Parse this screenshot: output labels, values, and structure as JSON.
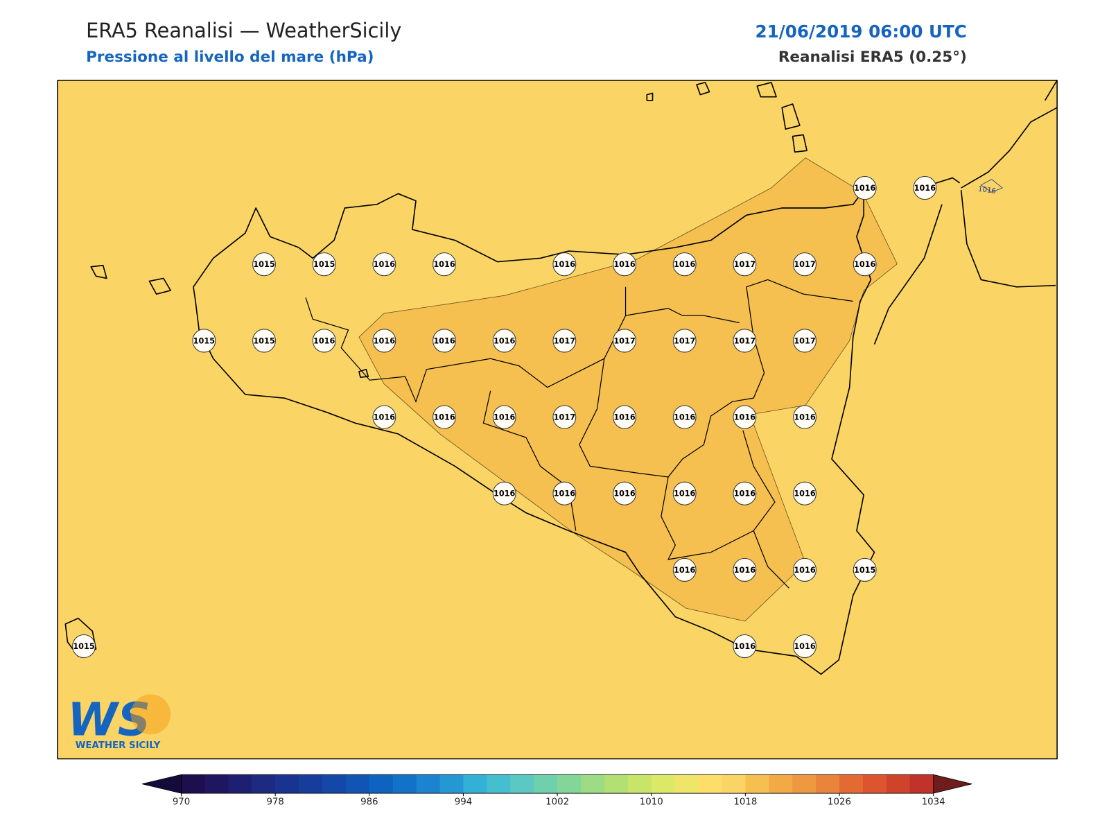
{
  "header": {
    "title": "ERA5 Reanalisi — WeatherSicily",
    "subtitle": "Pressione al livello del mare (hPa)",
    "datetime": "21/06/2019 06:00 UTC",
    "source": "Reanalisi ERA5 (0.25°)"
  },
  "map": {
    "stations": [
      {
        "value": 1016
      },
      {
        "value": 1016
      },
      {
        "value": 1015
      },
      {
        "value": 1015
      },
      {
        "value": 1016
      },
      {
        "value": 1016
      },
      {
        "value": 1016
      },
      {
        "value": 1016
      },
      {
        "value": 1016
      },
      {
        "value": 1017
      },
      {
        "value": 1017
      },
      {
        "value": 1016
      },
      {
        "value": 1015
      },
      {
        "value": 1015
      },
      {
        "value": 1016
      },
      {
        "value": 1016
      },
      {
        "value": 1016
      },
      {
        "value": 1016
      },
      {
        "value": 1017
      },
      {
        "value": 1017
      },
      {
        "value": 1017
      },
      {
        "value": 1017
      },
      {
        "value": 1017
      },
      {
        "value": 1016
      },
      {
        "value": 1016
      },
      {
        "value": 1016
      },
      {
        "value": 1017
      },
      {
        "value": 1016
      },
      {
        "value": 1016
      },
      {
        "value": 1016
      },
      {
        "value": 1016
      },
      {
        "value": 1016
      },
      {
        "value": 1016
      },
      {
        "value": 1016
      },
      {
        "value": 1016
      },
      {
        "value": 1016
      },
      {
        "value": 1016
      },
      {
        "value": 1016
      },
      {
        "value": 1016
      },
      {
        "value": 1016
      },
      {
        "value": 1015
      },
      {
        "value": 1015
      },
      {
        "value": 1016
      },
      {
        "value": 1016
      }
    ],
    "contour_label": "1016",
    "logo": {
      "mark": "WS",
      "name": "WEATHER SICILY"
    }
  },
  "colorbar": {
    "lim": [
      970,
      1034
    ],
    "ticks": [
      970,
      978,
      986,
      994,
      1002,
      1010,
      1018,
      1026,
      1034
    ],
    "under_color": "#150b3a",
    "over_color": "#6e1c1c",
    "colors": [
      "#1d0e4d",
      "#1e1660",
      "#1f1f72",
      "#1e2a82",
      "#1b3390",
      "#173d9c",
      "#1448a8",
      "#1155b4",
      "#0e63c0",
      "#1272c8",
      "#1a84cf",
      "#2598d3",
      "#33b0d6",
      "#45bfcf",
      "#5bc9c2",
      "#6fd0ae",
      "#84d698",
      "#9bdc84",
      "#b2e072",
      "#c8e469",
      "#dce868",
      "#ede66b",
      "#fcde68",
      "#fad565",
      "#f5c050",
      "#f2a946",
      "#ee9840",
      "#ea843a",
      "#e46a33",
      "#dc552e",
      "#cf432b",
      "#c0322a"
    ]
  }
}
